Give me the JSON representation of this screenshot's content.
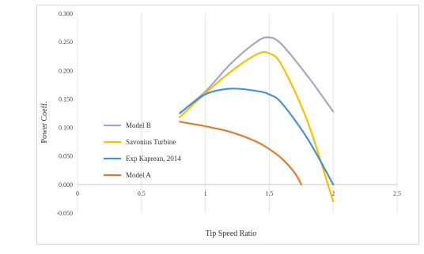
{
  "chart_data": {
    "type": "line",
    "title": "",
    "xlabel": "Tip Speed Ratio",
    "ylabel": "Power Coeff.",
    "xlim": [
      0,
      2.5
    ],
    "ylim": [
      -0.05,
      0.3
    ],
    "x_ticks": [
      "0",
      "0.5",
      "1",
      "1.5",
      "2",
      "2.5"
    ],
    "y_ticks": [
      "-0.050",
      "0.000",
      "0.050",
      "0.100",
      "0.150",
      "0.200",
      "0.250",
      "0.300"
    ],
    "grid": "vertical",
    "legend_position": "left-center",
    "series": [
      {
        "name": "Model B",
        "color": "#a5a5c8",
        "points": [
          [
            0.8,
            0.125
          ],
          [
            1.0,
            0.163
          ],
          [
            1.2,
            0.212
          ],
          [
            1.4,
            0.25
          ],
          [
            1.5,
            0.258
          ],
          [
            1.6,
            0.245
          ],
          [
            1.8,
            0.19
          ],
          [
            2.0,
            0.128
          ]
        ]
      },
      {
        "name": "Savonius Turbine",
        "color": "#f2c200",
        "points": [
          [
            0.8,
            0.118
          ],
          [
            1.0,
            0.16
          ],
          [
            1.2,
            0.198
          ],
          [
            1.4,
            0.228
          ],
          [
            1.5,
            0.23
          ],
          [
            1.6,
            0.208
          ],
          [
            1.8,
            0.11
          ],
          [
            2.0,
            -0.03
          ]
        ]
      },
      {
        "name": "Exp Kaprean, 2014",
        "color": "#4a90d0",
        "points": [
          [
            0.8,
            0.125
          ],
          [
            1.0,
            0.158
          ],
          [
            1.2,
            0.168
          ],
          [
            1.4,
            0.164
          ],
          [
            1.5,
            0.158
          ],
          [
            1.6,
            0.142
          ],
          [
            1.8,
            0.08
          ],
          [
            2.0,
            0.0
          ]
        ]
      },
      {
        "name": "Model A",
        "color": "#e07a2e",
        "points": [
          [
            0.8,
            0.11
          ],
          [
            1.0,
            0.102
          ],
          [
            1.2,
            0.092
          ],
          [
            1.4,
            0.075
          ],
          [
            1.5,
            0.062
          ],
          [
            1.6,
            0.045
          ],
          [
            1.7,
            0.02
          ],
          [
            1.75,
            0.0
          ]
        ]
      }
    ]
  }
}
